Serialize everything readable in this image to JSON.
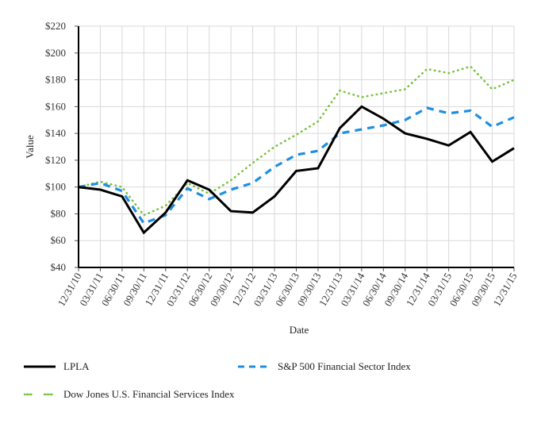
{
  "chart_data": {
    "type": "line",
    "title": "",
    "xlabel": "Date",
    "ylabel": "Value",
    "ylim": [
      40,
      220
    ],
    "yticks": [
      40,
      60,
      80,
      100,
      120,
      140,
      160,
      180,
      200,
      220
    ],
    "ytick_labels": [
      "$40",
      "$60",
      "$80",
      "$100",
      "$120",
      "$140",
      "$160",
      "$180",
      "$200",
      "$220"
    ],
    "grid": true,
    "legend_position": "bottom",
    "categories": [
      "12/31/10",
      "03/31/11",
      "06/30/11",
      "09/30/11",
      "12/31/11",
      "03/31/12",
      "06/30/12",
      "09/30/12",
      "12/31/12",
      "03/31/13",
      "06/30/13",
      "09/30/13",
      "12/31/13",
      "03/31/14",
      "06/30/14",
      "09/30/14",
      "12/31/14",
      "03/31/15",
      "06/30/15",
      "09/30/15",
      "12/31/15"
    ],
    "series": [
      {
        "name": "LPLA",
        "color": "#000000",
        "style": "solid",
        "values": [
          100,
          98,
          93,
          66,
          81,
          105,
          98,
          82,
          81,
          93,
          112,
          114,
          144,
          160,
          151,
          140,
          136,
          131,
          141,
          119,
          129
        ]
      },
      {
        "name": "S&P 500 Financial Sector Index",
        "color": "#1f8fe0",
        "style": "dashed",
        "values": [
          100,
          103,
          97,
          73,
          79,
          99,
          91,
          98,
          103,
          115,
          124,
          127,
          140,
          143,
          146,
          150,
          159,
          155,
          157,
          145,
          152
        ]
      },
      {
        "name": "Dow Jones U.S. Financial Services Index",
        "color": "#7cc242",
        "style": "dotted",
        "values": [
          100,
          104,
          100,
          79,
          86,
          103,
          95,
          105,
          118,
          130,
          139,
          149,
          172,
          167,
          170,
          173,
          188,
          185,
          190,
          173,
          180
        ]
      }
    ]
  }
}
